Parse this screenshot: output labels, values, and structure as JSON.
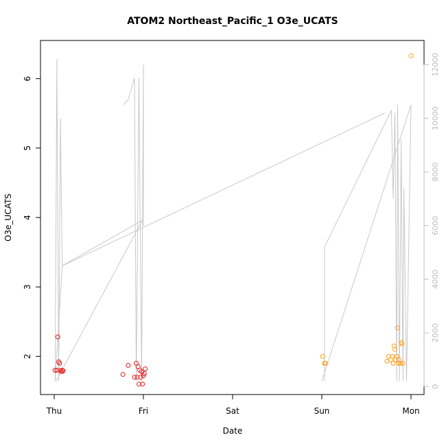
{
  "chart_data": {
    "type": "scatter",
    "title": "ATOM2 Northeast_Pacific_1 O3e_UCATS",
    "xlabel": "Date",
    "ylabel": "O3e_UCATS",
    "x_ticks": [
      "Thu",
      "Fri",
      "Sat",
      "Sun",
      "Mon"
    ],
    "xlim": [
      0,
      4.0
    ],
    "ylim": [
      1.45,
      6.55
    ],
    "y_ticks": [
      2,
      3,
      4,
      5,
      6
    ],
    "y2_ticks": [
      0,
      2000,
      4000,
      6000,
      8000,
      10000,
      12000
    ],
    "y2lim": [
      -300,
      12900
    ],
    "grid": false,
    "series": [
      {
        "color": "#e31a1c",
        "marker": "open-circle",
        "points": [
          [
            0.01,
            1.8
          ],
          [
            0.03,
            1.8
          ],
          [
            0.04,
            2.28
          ],
          [
            0.05,
            1.92
          ],
          [
            0.06,
            1.9
          ],
          [
            0.07,
            1.8
          ],
          [
            0.08,
            1.78
          ],
          [
            0.09,
            1.8
          ],
          [
            0.1,
            1.79
          ],
          [
            0.77,
            1.74
          ],
          [
            0.83,
            1.87
          ],
          [
            0.9,
            1.7
          ],
          [
            0.92,
            1.9
          ],
          [
            0.93,
            1.7
          ],
          [
            0.94,
            1.85
          ],
          [
            0.95,
            1.6
          ],
          [
            0.96,
            1.8
          ],
          [
            0.97,
            1.7
          ],
          [
            0.98,
            1.78
          ],
          [
            0.99,
            1.6
          ],
          [
            1.0,
            1.72
          ],
          [
            1.01,
            1.75
          ],
          [
            1.02,
            1.82
          ]
        ]
      },
      {
        "color": "#ff9f1c",
        "marker": "open-circle",
        "points": [
          [
            3.01,
            2.0
          ],
          [
            3.03,
            1.9
          ],
          [
            3.04,
            1.9
          ],
          [
            3.73,
            1.93
          ],
          [
            3.75,
            2.0
          ],
          [
            3.77,
            1.95
          ],
          [
            3.79,
            2.0
          ],
          [
            3.8,
            1.9
          ],
          [
            3.81,
            2.15
          ],
          [
            3.82,
            2.1
          ],
          [
            3.83,
            1.95
          ],
          [
            3.84,
            2.0
          ],
          [
            3.85,
            2.41
          ],
          [
            3.86,
            1.9
          ],
          [
            3.87,
            1.95
          ],
          [
            3.88,
            1.9
          ],
          [
            3.89,
            2.2
          ],
          [
            3.9,
            2.18
          ],
          [
            3.91,
            1.9
          ],
          [
            4.0,
            6.33
          ]
        ]
      }
    ],
    "altitude_series": {
      "color": "#c8c8c8",
      "axis": "right",
      "segments": [
        [
          [
            0.01,
            200
          ],
          [
            0.03,
            12200
          ],
          [
            0.05,
            200
          ],
          [
            0.07,
            10000
          ],
          [
            0.09,
            4500
          ],
          [
            0.99,
            6200
          ],
          [
            0.02,
            200
          ]
        ],
        [
          [
            0.77,
            10500
          ],
          [
            0.83,
            10700
          ],
          [
            0.9,
            11500
          ],
          [
            0.92,
            200
          ],
          [
            0.95,
            11500
          ],
          [
            0.98,
            200
          ],
          [
            1.0,
            12000
          ],
          [
            1.0,
            6000
          ]
        ],
        [
          [
            3.03,
            200
          ],
          [
            3.03,
            5200
          ],
          [
            3.78,
            10300
          ],
          [
            3.8,
            7000
          ],
          [
            3.82,
            10200
          ],
          [
            3.84,
            200
          ],
          [
            3.85,
            10500
          ],
          [
            3.87,
            200
          ],
          [
            3.89,
            9200
          ],
          [
            3.91,
            200
          ],
          [
            3.92,
            7400
          ],
          [
            3.95,
            200
          ],
          [
            4.0,
            10500
          ],
          [
            3.0,
            200
          ]
        ],
        [
          [
            0.01,
            200
          ],
          [
            0.09,
            4500
          ],
          [
            3.71,
            10200
          ]
        ]
      ]
    }
  }
}
